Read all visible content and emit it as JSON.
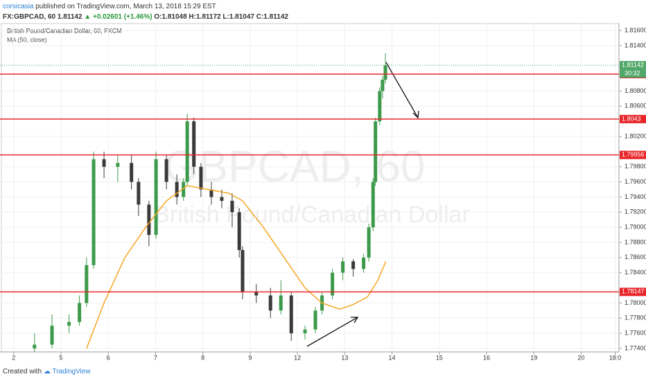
{
  "header": {
    "author": "corsicasia",
    "published": "published on TradingView.com, March 13, 2018 15:29 EST",
    "symbol": "FX:GBPCAD, 60",
    "last": "1.81142",
    "change": "▲ +0.02601 (+1.46%)",
    "open": "O:1.81048",
    "high": "H:1.81172",
    "low": "L:1.81047",
    "close": "C:1.81142"
  },
  "footer": {
    "created": "Created with",
    "brand": "TradingView"
  },
  "chart_data": {
    "type": "candlestick",
    "title": "British Pound/Canadian Dollar, 60, FXCM",
    "indicator": "MA (50, close)",
    "watermark": "GBPCAD, 60",
    "watermark_sub": "British Pound/Canadian Dollar",
    "up_color": "#3d9a4b",
    "down_color": "#3a3a3a",
    "ma_color": "#f5a623",
    "level_color": "#e8262a",
    "last_color": "#52a86a",
    "xlim": [
      -0.29,
      12.8
    ],
    "xticks": [
      {
        "value": 0,
        "label": "2"
      },
      {
        "value": 1,
        "label": "5"
      },
      {
        "value": 2,
        "label": "6"
      },
      {
        "value": 3,
        "label": "7"
      },
      {
        "value": 4,
        "label": "8"
      },
      {
        "value": 5,
        "label": "9"
      },
      {
        "value": 6,
        "label": "12"
      },
      {
        "value": 7,
        "label": "13"
      },
      {
        "value": 8,
        "label": "14"
      },
      {
        "value": 9,
        "label": "15"
      },
      {
        "value": 10,
        "label": "16"
      },
      {
        "value": 11,
        "label": "19"
      },
      {
        "value": 12,
        "label": "20"
      },
      {
        "value": 12.72,
        "label": "18:0"
      }
    ],
    "ylim": [
      1.77354,
      1.81692
    ],
    "yticks": [
      {
        "value": 1.816,
        "label": "1.81600"
      },
      {
        "value": 1.814,
        "label": "1.81400"
      },
      {
        "value": 1.808,
        "label": "1.80800"
      },
      {
        "value": 1.806,
        "label": "1.80600"
      },
      {
        "value": 1.802,
        "label": "1.80200"
      },
      {
        "value": 1.798,
        "label": "1.79800"
      },
      {
        "value": 1.796,
        "label": "1.79600"
      },
      {
        "value": 1.794,
        "label": "1.79400"
      },
      {
        "value": 1.792,
        "label": "1.79200"
      },
      {
        "value": 1.79,
        "label": "1.79000"
      },
      {
        "value": 1.788,
        "label": "1.78800"
      },
      {
        "value": 1.786,
        "label": "1.78600"
      },
      {
        "value": 1.784,
        "label": "1.78400"
      },
      {
        "value": 1.78,
        "label": "1.78000"
      },
      {
        "value": 1.778,
        "label": "1.77800"
      },
      {
        "value": 1.776,
        "label": "1.77600"
      },
      {
        "value": 1.774,
        "label": "1.77400"
      }
    ],
    "x": [
      0.44,
      0.81,
      1.17,
      1.39,
      1.54,
      1.69,
      1.91,
      2.2,
      2.49,
      2.64,
      2.86,
      3.01,
      3.23,
      3.45,
      3.59,
      3.67,
      3.81,
      3.96,
      4.18,
      4.4,
      4.62,
      4.77,
      4.84,
      5.13,
      5.43,
      5.65,
      5.87,
      6.16,
      6.38,
      6.52,
      6.74,
      6.96,
      7.18,
      7.4,
      7.51,
      7.6,
      7.65,
      7.74,
      7.8,
      7.86
    ],
    "open": [
      1.774,
      1.7745,
      1.777,
      1.7775,
      1.78,
      1.785,
      1.799,
      1.798,
      1.7985,
      1.796,
      1.793,
      1.789,
      1.799,
      1.796,
      1.794,
      1.796,
      1.804,
      1.798,
      1.795,
      1.794,
      1.7935,
      1.792,
      1.787,
      1.7815,
      1.781,
      1.779,
      1.781,
      1.776,
      1.7765,
      1.779,
      1.781,
      1.784,
      1.7855,
      1.7845,
      1.786,
      1.79,
      1.796,
      1.804,
      1.808,
      1.8095
    ],
    "high": [
      1.776,
      1.7785,
      1.7785,
      1.781,
      1.786,
      1.8,
      1.8,
      1.7995,
      1.7995,
      1.7965,
      1.7935,
      1.8,
      1.7995,
      1.797,
      1.7965,
      1.805,
      1.8045,
      1.7985,
      1.796,
      1.795,
      1.7945,
      1.7925,
      1.7875,
      1.7825,
      1.782,
      1.783,
      1.7815,
      1.777,
      1.7795,
      1.7815,
      1.7845,
      1.786,
      1.7858,
      1.7865,
      1.7905,
      1.7965,
      1.8045,
      1.8085,
      1.81,
      1.813
    ],
    "low": [
      1.7735,
      1.774,
      1.776,
      1.777,
      1.7795,
      1.7845,
      1.7965,
      1.796,
      1.795,
      1.7915,
      1.7875,
      1.7885,
      1.795,
      1.793,
      1.7935,
      1.7955,
      1.797,
      1.794,
      1.793,
      1.7925,
      1.79,
      1.786,
      1.7805,
      1.78,
      1.778,
      1.7785,
      1.775,
      1.7752,
      1.776,
      1.7785,
      1.7805,
      1.783,
      1.7835,
      1.784,
      1.7855,
      1.7895,
      1.7955,
      1.8035,
      1.807,
      1.809
    ],
    "close": [
      1.7745,
      1.777,
      1.7775,
      1.78,
      1.785,
      1.799,
      1.798,
      1.7985,
      1.796,
      1.793,
      1.789,
      1.799,
      1.796,
      1.794,
      1.796,
      1.804,
      1.798,
      1.795,
      1.794,
      1.7935,
      1.792,
      1.787,
      1.7815,
      1.781,
      1.779,
      1.781,
      1.776,
      1.7765,
      1.779,
      1.781,
      1.784,
      1.7855,
      1.7845,
      1.786,
      1.79,
      1.796,
      1.804,
      1.808,
      1.8095,
      1.8114
    ],
    "ma_x": [
      1.54,
      1.91,
      2.35,
      2.79,
      3.23,
      3.67,
      4.11,
      4.55,
      4.84,
      5.28,
      5.72,
      6.16,
      6.52,
      6.89,
      7.18,
      7.48,
      7.7,
      7.87
    ],
    "ma": [
      1.774,
      1.78,
      1.786,
      1.79,
      1.7935,
      1.7955,
      1.795,
      1.7945,
      1.7935,
      1.79,
      1.786,
      1.782,
      1.78,
      1.7792,
      1.7798,
      1.7808,
      1.783,
      1.7855
    ],
    "levels": [
      1.81024,
      1.8043,
      1.79956,
      1.78147
    ],
    "last": 1.81142,
    "countdown": "30:32"
  }
}
